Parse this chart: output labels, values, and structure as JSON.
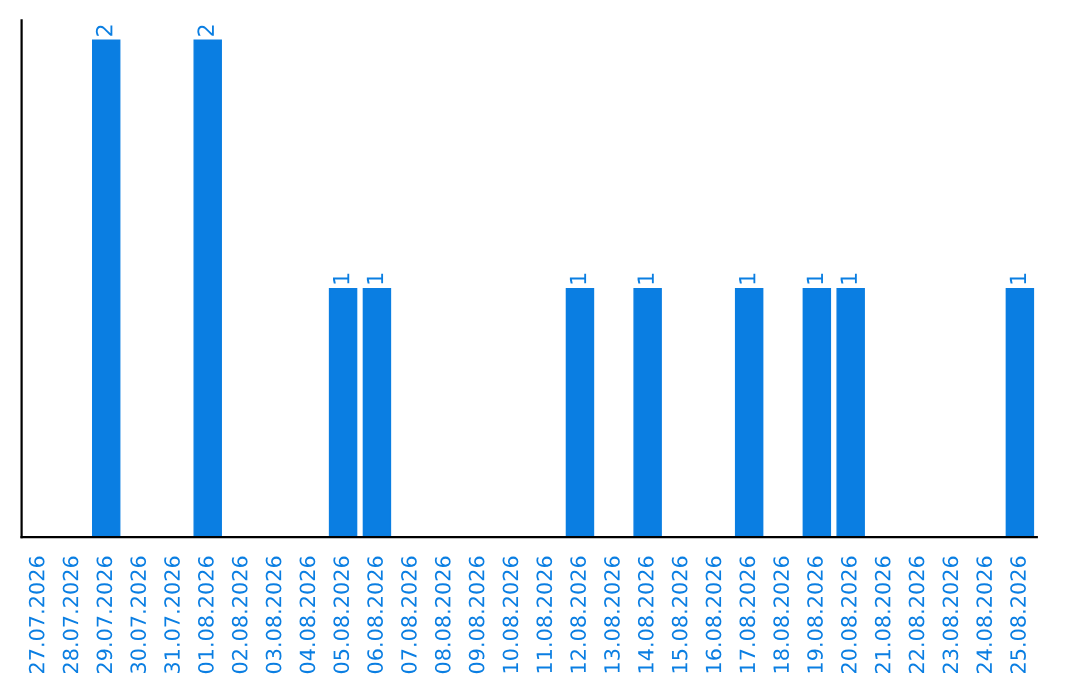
{
  "chart_data": {
    "type": "bar",
    "categories": [
      "27.07.2026",
      "28.07.2026",
      "29.07.2026",
      "30.07.2026",
      "31.07.2026",
      "01.08.2026",
      "02.08.2026",
      "03.08.2026",
      "04.08.2026",
      "05.08.2026",
      "06.08.2026",
      "07.08.2026",
      "08.08.2026",
      "09.08.2026",
      "10.08.2026",
      "11.08.2026",
      "12.08.2026",
      "13.08.2026",
      "14.08.2026",
      "15.08.2026",
      "16.08.2026",
      "17.08.2026",
      "18.08.2026",
      "19.08.2026",
      "20.08.2026",
      "21.08.2026",
      "22.08.2026",
      "23.08.2026",
      "24.08.2026",
      "25.08.2026"
    ],
    "values": [
      0,
      0,
      2,
      0,
      0,
      2,
      0,
      0,
      0,
      1,
      1,
      0,
      0,
      0,
      0,
      0,
      1,
      0,
      1,
      0,
      0,
      1,
      0,
      1,
      1,
      0,
      0,
      0,
      0,
      1
    ],
    "value_labels": [
      null,
      null,
      "2",
      null,
      null,
      "2",
      null,
      null,
      null,
      "1",
      "1",
      null,
      null,
      null,
      null,
      null,
      "1",
      null,
      "1",
      null,
      null,
      "1",
      null,
      "1",
      "1",
      null,
      null,
      null,
      null,
      "1"
    ],
    "color": "#0a7ee2",
    "tick_labels": "x",
    "grid": false,
    "legend": false
  }
}
